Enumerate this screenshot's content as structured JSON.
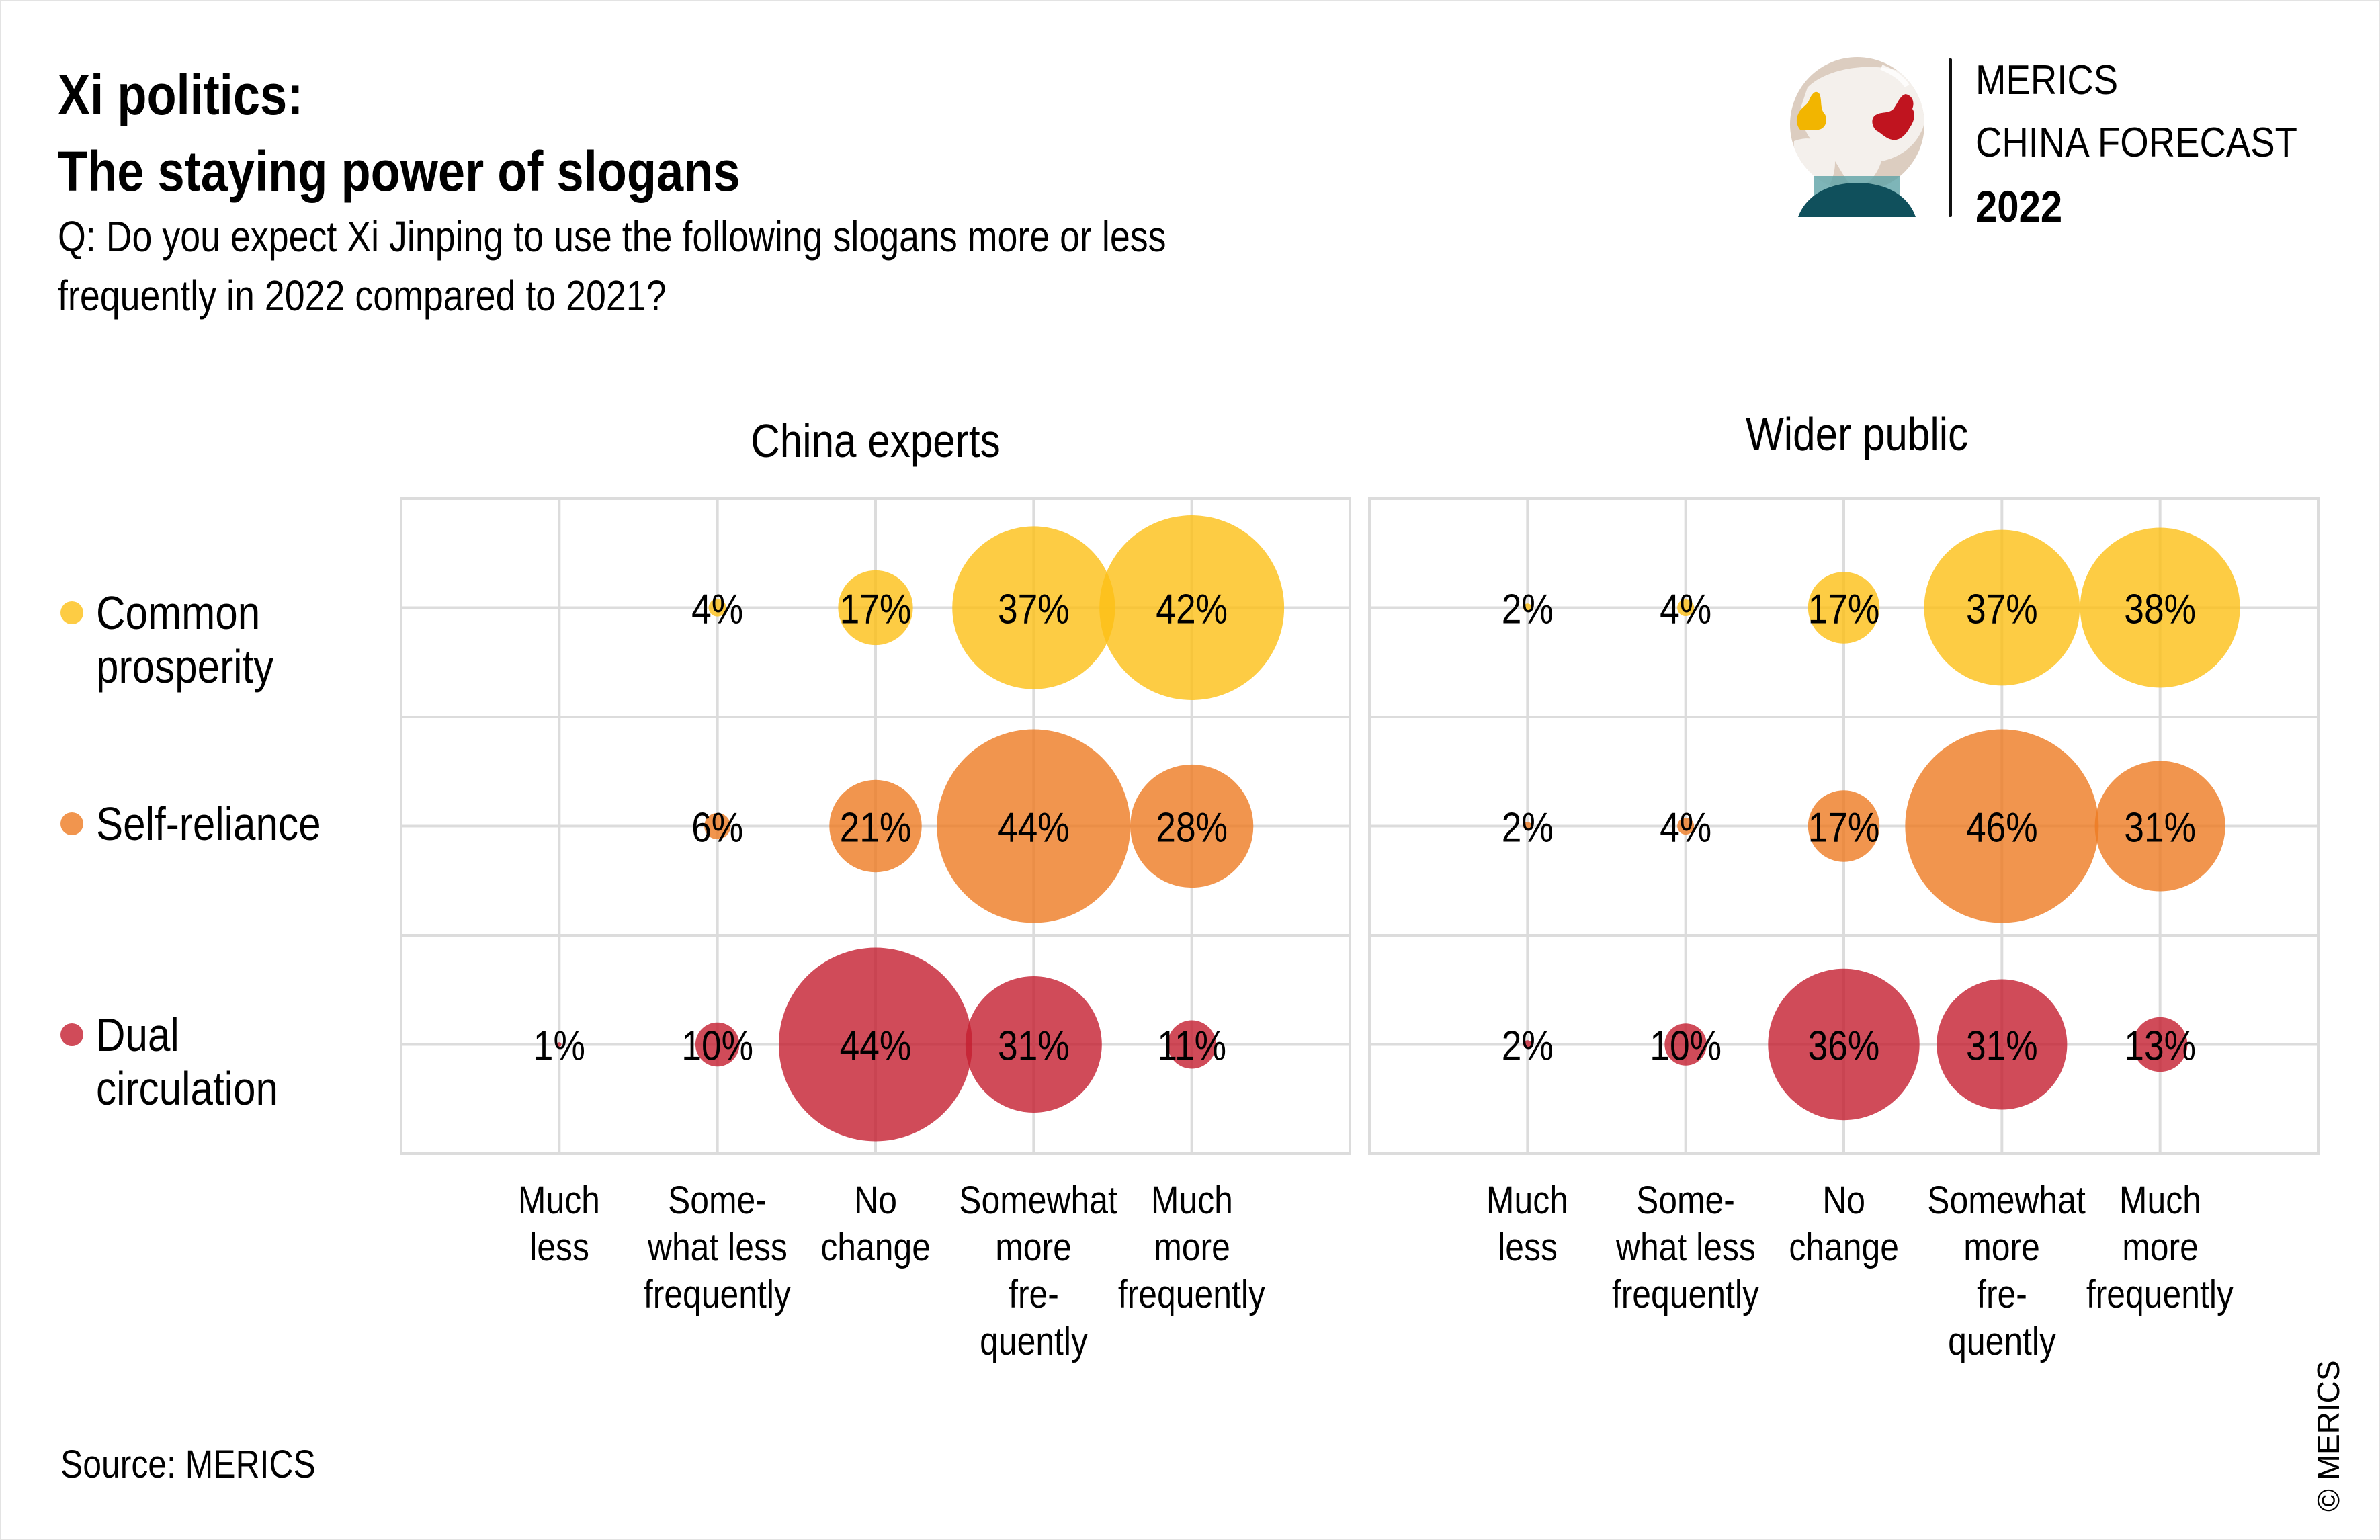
{
  "header": {
    "title_lines": [
      "Xi politics:",
      "The staying power of slogans"
    ],
    "subtitle_lines": [
      "Q: Do you expect Xi Jinping to use the following slogans more or less",
      "frequently in 2022 compared to 2021?"
    ]
  },
  "logo": {
    "line1": "MERICS",
    "line2": "CHINA FORECAST",
    "line3": "2022",
    "icon": "crystal-ball-globe-icon",
    "colors": {
      "globe_land": "#f4f0ec",
      "globe_sea": "#dccdc0",
      "europe": "#f2b500",
      "china": "#c0141f",
      "base_dark": "#10505c",
      "base_light": "#5ea2a6"
    }
  },
  "legend": [
    {
      "label_lines": [
        "Common",
        "prosperity"
      ],
      "color": "#FCBF15"
    },
    {
      "label_lines": [
        "Self-reliance"
      ],
      "color": "#EE7A22"
    },
    {
      "label_lines": [
        "Dual",
        "circulation"
      ],
      "color": "#C41E30"
    }
  ],
  "footer": {
    "source": "Source: MERICS",
    "copyright": "© MERICS"
  },
  "chart_data": {
    "type": "bubble-matrix",
    "title": "Xi politics: The staying power of slogans",
    "categories": [
      [
        "Much",
        "less"
      ],
      [
        "Some-",
        "what less",
        "frequently"
      ],
      [
        "No",
        "change"
      ],
      [
        "Somewhat",
        "more",
        "fre-",
        "quently"
      ],
      [
        "Much",
        "more",
        "frequently"
      ]
    ],
    "category_names": [
      "Much less",
      "Somewhat less frequently",
      "No change",
      "Somewhat more frequently",
      "Much more frequently"
    ],
    "series_names": [
      "Common prosperity",
      "Self-reliance",
      "Dual circulation"
    ],
    "series_colors": [
      "#FCBF15",
      "#EE7A22",
      "#C41E30"
    ],
    "bubble_opacity": 0.8,
    "grid": true,
    "unit": "%",
    "panels": [
      {
        "title": "China experts",
        "rows": [
          {
            "series": "Common prosperity",
            "values": [
              0,
              4,
              17,
              37,
              42
            ],
            "labels": [
              "",
              "4%",
              "17%",
              "37%",
              "42%"
            ]
          },
          {
            "series": "Self-reliance",
            "values": [
              0,
              6,
              21,
              44,
              28
            ],
            "labels": [
              "",
              "6%",
              "21%",
              "44%",
              "28%"
            ]
          },
          {
            "series": "Dual circulation",
            "values": [
              1,
              10,
              44,
              31,
              11
            ],
            "labels": [
              "1%",
              "10%",
              "44%",
              "31%",
              "11%"
            ]
          }
        ]
      },
      {
        "title": "Wider public",
        "rows": [
          {
            "series": "Common prosperity",
            "values": [
              2,
              4,
              17,
              37,
              38
            ],
            "labels": [
              "2%",
              "4%",
              "17%",
              "37%",
              "38%"
            ]
          },
          {
            "series": "Self-reliance",
            "values": [
              2,
              4,
              17,
              46,
              31
            ],
            "labels": [
              "2%",
              "4%",
              "17%",
              "46%",
              "31%"
            ]
          },
          {
            "series": "Dual circulation",
            "values": [
              2,
              10,
              36,
              31,
              13
            ],
            "labels": [
              "2%",
              "10%",
              "36%",
              "31%",
              "13%"
            ]
          }
        ]
      }
    ]
  }
}
